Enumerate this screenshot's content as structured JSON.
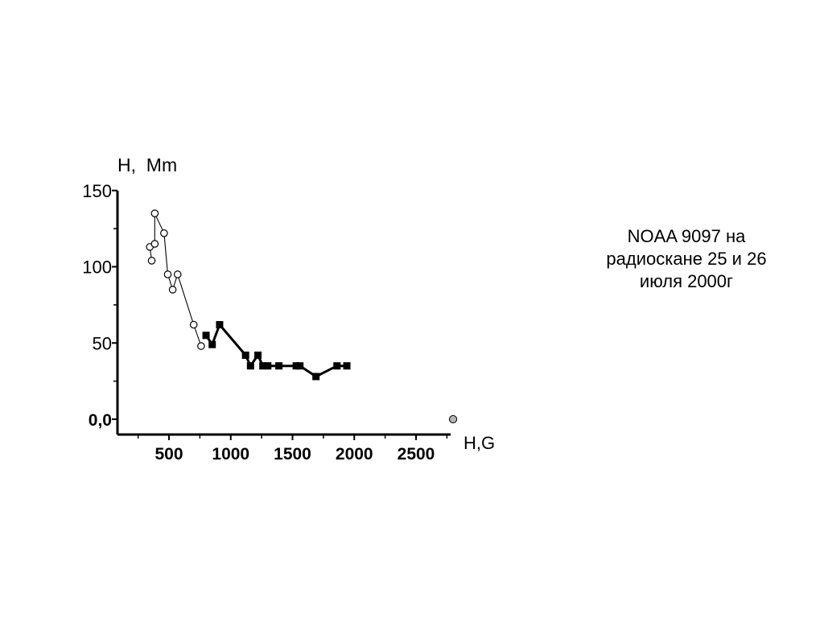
{
  "chart_data": {
    "type": "scatter",
    "ylabel": "H,  Mm",
    "xlabel": "H,G",
    "xlim": [
      100,
      2800
    ],
    "ylim": [
      -10,
      150
    ],
    "x_ticks": [
      500,
      1000,
      1500,
      2000,
      2500
    ],
    "x_tick_labels": [
      "500",
      "1000",
      "1500",
      "2000",
      "2500"
    ],
    "y_ticks": [
      150,
      100,
      50,
      0
    ],
    "y_tick_labels": [
      "150",
      "100",
      "50",
      "0,0"
    ],
    "grid": false,
    "series": [
      {
        "marker": "open-circle",
        "line": "thin",
        "color": "#000000",
        "points": [
          [
            360,
            104
          ],
          [
            345,
            113
          ],
          [
            385,
            115
          ],
          [
            385,
            135
          ],
          [
            460,
            122
          ],
          [
            490,
            95
          ],
          [
            530,
            85
          ],
          [
            570,
            95
          ],
          [
            700,
            62
          ],
          [
            760,
            48
          ]
        ]
      },
      {
        "marker": "filled-square",
        "line": "thick",
        "color": "#000000",
        "points": [
          [
            800,
            55
          ],
          [
            850,
            49
          ],
          [
            910,
            62
          ],
          [
            1120,
            42
          ],
          [
            1160,
            35
          ],
          [
            1220,
            42
          ],
          [
            1260,
            35
          ],
          [
            1300,
            35
          ],
          [
            1390,
            35
          ],
          [
            1530,
            35
          ],
          [
            1560,
            35
          ],
          [
            1690,
            28
          ],
          [
            1860,
            35
          ],
          [
            1940,
            35
          ]
        ]
      },
      {
        "marker": "grey-circle",
        "line": "none",
        "color": "#b4b4b4",
        "points": [
          [
            2800,
            0
          ]
        ]
      }
    ]
  },
  "annotation": {
    "lines": [
      "NOAA 9097 на",
      "радиоскане 25 и 26",
      "июля 2000г"
    ]
  }
}
